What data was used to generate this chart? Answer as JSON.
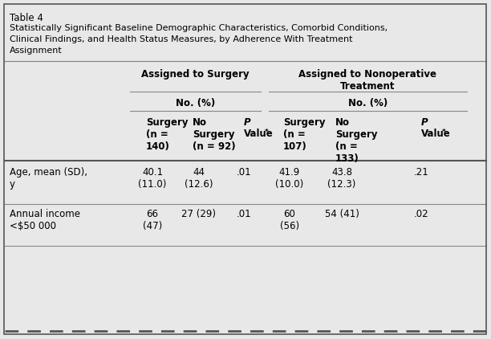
{
  "table_number": "Table 4",
  "title_lines": [
    "Statistically Significant Baseline Demographic Characteristics, Comorbid Conditions,",
    "Clinical Findings, and Health Status Measures, by Adherence With Treatment",
    "Assignment"
  ],
  "col_group1_label": "Assigned to Surgery",
  "col_group2_label": "Assigned to Nonoperative\nTreatment",
  "subheader": "No. (%)",
  "col_headers": [
    [
      "Surgery\n(n =\n140)",
      false
    ],
    [
      "No\nSurgery\n(n = 92)",
      false
    ],
    [
      "P\nValue*",
      true
    ],
    [
      "Surgery\n(n =\n107)",
      false
    ],
    [
      "No\nSurgery\n(n =\n133)",
      false
    ],
    [
      "P\nValue*",
      true
    ]
  ],
  "rows": [
    {
      "label": "Age, mean (SD),\ny",
      "values": [
        "40.1\n(11.0)",
        "44\n(12.6)",
        ".01",
        "41.9\n(10.0)",
        "43.8\n(12.3)",
        ".21"
      ]
    },
    {
      "label": "Annual income\n<$50 000",
      "values": [
        "66\n(47)",
        "27 (29)",
        ".01",
        "60\n(56)",
        "54 (41)",
        ".02"
      ]
    }
  ],
  "bg_color": "#e8e8e8",
  "text_color": "#000000",
  "border_color": "#555555",
  "line_color": "#888888"
}
